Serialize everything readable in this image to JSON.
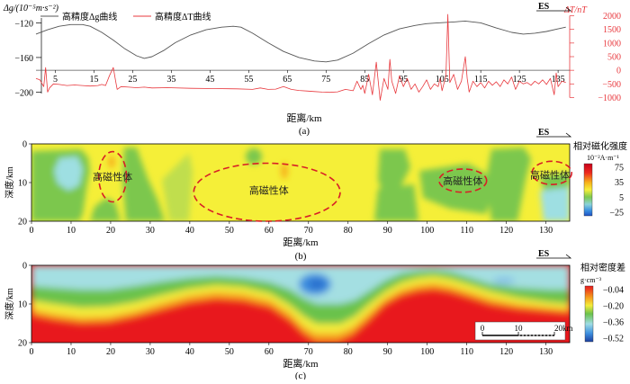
{
  "chart_data": [
    {
      "id": "a",
      "type": "line",
      "panel_label": "(a)",
      "xlabel": "距离/km",
      "x_ticks": [
        5,
        15,
        25,
        35,
        45,
        55,
        65,
        75,
        85,
        95,
        105,
        115,
        125,
        135
      ],
      "x_range": [
        0,
        138
      ],
      "direction_label": "ES",
      "left_axis": {
        "label": "Δg/(10⁻⁵m·s⁻²)",
        "ticks": [
          -120,
          -160,
          -200
        ],
        "range": [
          -214,
          -102
        ]
      },
      "right_axis": {
        "label": "ΔT/nT",
        "ticks": [
          2000,
          1500,
          1000,
          500,
          0,
          -500,
          -1000
        ],
        "range": [
          -1150,
          2150
        ]
      },
      "series": [
        {
          "name": "高精度Δg曲线",
          "axis": "left",
          "color": "#555555",
          "points": [
            [
              0,
              -133
            ],
            [
              3,
              -128
            ],
            [
              6,
              -124
            ],
            [
              9,
              -122
            ],
            [
              12,
              -122
            ],
            [
              14,
              -124
            ],
            [
              17,
              -131
            ],
            [
              20,
              -140
            ],
            [
              23,
              -150
            ],
            [
              26,
              -158
            ],
            [
              28,
              -161
            ],
            [
              30,
              -159
            ],
            [
              33,
              -152
            ],
            [
              36,
              -143
            ],
            [
              40,
              -134
            ],
            [
              44,
              -128
            ],
            [
              48,
              -125
            ],
            [
              51,
              -124
            ],
            [
              53,
              -125
            ],
            [
              56,
              -132
            ],
            [
              60,
              -143
            ],
            [
              64,
              -153
            ],
            [
              68,
              -160
            ],
            [
              72,
              -164
            ],
            [
              75,
              -165
            ],
            [
              78,
              -163
            ],
            [
              82,
              -155
            ],
            [
              86,
              -144
            ],
            [
              90,
              -134
            ],
            [
              94,
              -127
            ],
            [
              98,
              -123
            ],
            [
              101,
              -121
            ],
            [
              104,
              -120
            ],
            [
              108,
              -119
            ],
            [
              111,
              -118
            ],
            [
              115,
              -120
            ],
            [
              119,
              -126
            ],
            [
              123,
              -131
            ],
            [
              126,
              -133
            ],
            [
              129,
              -132
            ],
            [
              132,
              -130
            ],
            [
              135,
              -127
            ],
            [
              137,
              -125
            ]
          ]
        },
        {
          "name": "高精度ΔT曲线",
          "axis": "right",
          "color": "#e8383d",
          "points": [
            [
              0,
              -300
            ],
            [
              1,
              -350
            ],
            [
              2,
              -600
            ],
            [
              2.5,
              100
            ],
            [
              3,
              -800
            ],
            [
              3.5,
              -650
            ],
            [
              4.5,
              -500
            ],
            [
              6,
              -520
            ],
            [
              8,
              -560
            ],
            [
              10,
              -540
            ],
            [
              12,
              -560
            ],
            [
              14,
              -580
            ],
            [
              16,
              -560
            ],
            [
              17,
              -520
            ],
            [
              18,
              -560
            ],
            [
              19,
              -200
            ],
            [
              20,
              100
            ],
            [
              20.6,
              -400
            ],
            [
              21,
              -700
            ],
            [
              22,
              -600
            ],
            [
              24,
              -620
            ],
            [
              26,
              -640
            ],
            [
              28,
              -620
            ],
            [
              30,
              -650
            ],
            [
              34,
              -640
            ],
            [
              40,
              -660
            ],
            [
              46,
              -670
            ],
            [
              52,
              -680
            ],
            [
              56,
              -700
            ],
            [
              58,
              -650
            ],
            [
              60,
              -700
            ],
            [
              62,
              -690
            ],
            [
              64,
              -600
            ],
            [
              66,
              -700
            ],
            [
              68,
              -740
            ],
            [
              70,
              -760
            ],
            [
              72,
              -780
            ],
            [
              74,
              -800
            ],
            [
              76,
              -810
            ],
            [
              78,
              -790
            ],
            [
              80,
              -700
            ],
            [
              82,
              -750
            ],
            [
              83,
              -400
            ],
            [
              84,
              -700
            ],
            [
              84.5,
              -550
            ],
            [
              85,
              -850
            ],
            [
              86,
              -150
            ],
            [
              87,
              -900
            ],
            [
              88,
              300
            ],
            [
              89,
              -1100
            ],
            [
              90,
              -300
            ],
            [
              91,
              -700
            ],
            [
              91.5,
              400
            ],
            [
              92,
              -400
            ],
            [
              93,
              -850
            ],
            [
              94,
              -200
            ],
            [
              95,
              -600
            ],
            [
              96,
              -300
            ],
            [
              97,
              -700
            ],
            [
              98,
              -500
            ],
            [
              99,
              -800
            ],
            [
              100,
              -600
            ],
            [
              101,
              -350
            ],
            [
              102,
              -700
            ],
            [
              103,
              -500
            ],
            [
              104,
              -600
            ],
            [
              104.5,
              -300
            ],
            [
              105,
              -750
            ],
            [
              106,
              -200
            ],
            [
              106.5,
              2050
            ],
            [
              107,
              -450
            ],
            [
              108,
              -150
            ],
            [
              109,
              -700
            ],
            [
              110,
              -400
            ],
            [
              111,
              500
            ],
            [
              111.5,
              -300
            ],
            [
              112,
              -800
            ],
            [
              113,
              -400
            ],
            [
              114,
              -600
            ],
            [
              115,
              -450
            ],
            [
              116,
              -650
            ],
            [
              117,
              -400
            ],
            [
              118,
              -550
            ],
            [
              119,
              -420
            ],
            [
              120,
              -600
            ],
            [
              121,
              -350
            ],
            [
              122,
              -500
            ],
            [
              123,
              -250
            ],
            [
              124,
              -700
            ],
            [
              125,
              -400
            ],
            [
              126,
              -500
            ],
            [
              127,
              -450
            ],
            [
              128,
              -550
            ],
            [
              129,
              -400
            ],
            [
              130,
              -500
            ],
            [
              131,
              -350
            ],
            [
              132,
              -520
            ],
            [
              133,
              -300
            ],
            [
              134,
              -900
            ],
            [
              134.5,
              -100
            ],
            [
              135,
              -600
            ],
            [
              136,
              -400
            ],
            [
              137,
              -450
            ]
          ]
        }
      ]
    },
    {
      "id": "b",
      "type": "heatmap",
      "panel_label": "(b)",
      "xlabel": "距离/km",
      "ylabel": "深度/km",
      "x_ticks": [
        0,
        10,
        20,
        30,
        40,
        50,
        60,
        70,
        80,
        90,
        100,
        110,
        120,
        130
      ],
      "x_range": [
        0,
        136
      ],
      "y_ticks": [
        0,
        10,
        20
      ],
      "y_range": [
        0,
        20
      ],
      "direction_label": "ES",
      "colorbar": {
        "title": "相对磁化强度",
        "unit": "10⁻²A·m⁻¹",
        "ticks": [
          75,
          35,
          5,
          -25
        ]
      },
      "annotations": [
        {
          "text": "高磁性体",
          "x": 20.5,
          "y": 8.5
        },
        {
          "text": "高磁性体",
          "x": 60,
          "y": 12
        },
        {
          "text": "高磁性体",
          "x": 109,
          "y": 9.5
        },
        {
          "text": "高磁性体",
          "x": 131,
          "y": 8
        }
      ],
      "ellipses": [
        {
          "cx": 20.5,
          "cy": 8.5,
          "rx": 3.5,
          "ry": 6.5
        },
        {
          "cx": 59.5,
          "cy": 12.5,
          "rx": 18.5,
          "ry": 7.5
        },
        {
          "cx": 109,
          "cy": 9.5,
          "rx": 6,
          "ry": 3
        },
        {
          "cx": 131.5,
          "cy": 7.5,
          "rx": 5,
          "ry": 3
        }
      ]
    },
    {
      "id": "c",
      "type": "heatmap",
      "panel_label": "(c)",
      "xlabel": "距离/km",
      "ylabel": "深度/km",
      "x_ticks": [
        0,
        10,
        20,
        30,
        40,
        50,
        60,
        70,
        80,
        90,
        100,
        110,
        120,
        130
      ],
      "x_range": [
        0,
        136
      ],
      "y_ticks": [
        0,
        10,
        20
      ],
      "y_range": [
        0,
        20
      ],
      "direction_label": "ES",
      "colorbar": {
        "title": "相对密度差",
        "unit": "g·cm⁻³",
        "ticks": [
          -0.04,
          -0.2,
          -0.36,
          -0.52
        ]
      },
      "scalebar": {
        "ticks": [
          "0",
          "10",
          "20km"
        ]
      }
    }
  ]
}
